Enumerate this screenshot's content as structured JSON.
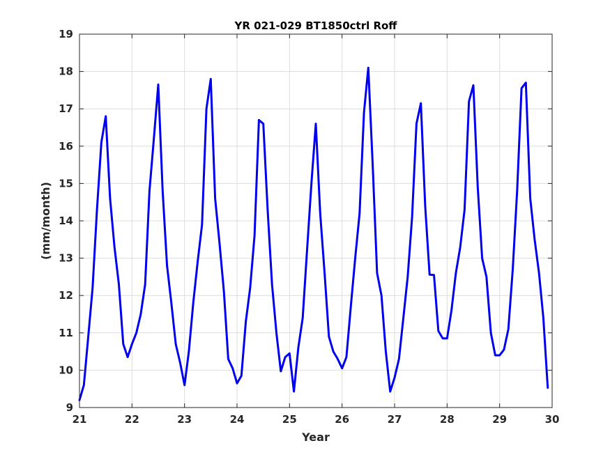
{
  "chart_data": {
    "type": "line",
    "title": "YR 021-029 BT1850ctrl Roff",
    "xlabel": "Year",
    "ylabel": "(mm/month)",
    "xlim": [
      21,
      30
    ],
    "ylim": [
      9,
      19
    ],
    "xticks": [
      21,
      22,
      23,
      24,
      25,
      26,
      27,
      28,
      29,
      30
    ],
    "yticks": [
      9,
      10,
      11,
      12,
      13,
      14,
      15,
      16,
      17,
      18,
      19
    ],
    "grid": true,
    "colors": {
      "line": "#0000ee",
      "grid": "#dcdcdc",
      "axis": "#262626"
    },
    "series": [
      {
        "x": [
          21.0,
          21.083,
          21.167,
          21.25,
          21.333,
          21.417,
          21.5,
          21.583,
          21.667,
          21.75,
          21.833,
          21.917,
          22.0,
          22.083,
          22.167,
          22.25,
          22.333,
          22.417,
          22.5,
          22.583,
          22.667,
          22.75,
          22.833,
          22.917,
          23.0,
          23.083,
          23.167,
          23.25,
          23.333,
          23.417,
          23.5,
          23.583,
          23.667,
          23.75,
          23.833,
          23.917,
          24.0,
          24.083,
          24.167,
          24.25,
          24.333,
          24.417,
          24.5,
          24.583,
          24.667,
          24.75,
          24.833,
          24.917,
          25.0,
          25.083,
          25.167,
          25.25,
          25.333,
          25.417,
          25.5,
          25.583,
          25.667,
          25.75,
          25.833,
          25.917,
          26.0,
          26.083,
          26.167,
          26.25,
          26.333,
          26.417,
          26.5,
          26.583,
          26.667,
          26.75,
          26.833,
          26.917,
          27.0,
          27.083,
          27.167,
          27.25,
          27.333,
          27.417,
          27.5,
          27.583,
          27.667,
          27.75,
          27.833,
          27.917,
          28.0,
          28.083,
          28.167,
          28.25,
          28.333,
          28.417,
          28.5,
          28.583,
          28.667,
          28.75,
          28.833,
          28.917,
          29.0,
          29.083,
          29.167,
          29.25,
          29.333,
          29.417,
          29.5,
          29.583,
          29.667,
          29.75,
          29.833,
          29.917
        ],
        "y": [
          9.2,
          9.6,
          10.9,
          12.2,
          14.3,
          16.1,
          16.8,
          14.6,
          13.3,
          12.3,
          10.7,
          10.35,
          10.7,
          11.0,
          11.5,
          12.3,
          14.8,
          16.2,
          17.65,
          14.8,
          12.8,
          11.8,
          10.7,
          10.2,
          9.6,
          10.5,
          11.8,
          12.9,
          13.9,
          17.0,
          17.8,
          14.6,
          13.4,
          12.1,
          10.3,
          10.05,
          9.65,
          9.85,
          11.3,
          12.2,
          13.6,
          16.7,
          16.6,
          14.3,
          12.3,
          11.0,
          9.97,
          10.35,
          10.45,
          9.43,
          10.6,
          11.4,
          13.2,
          15.0,
          16.6,
          14.2,
          12.6,
          10.9,
          10.5,
          10.3,
          10.05,
          10.35,
          11.7,
          13.0,
          14.2,
          16.9,
          18.1,
          15.5,
          12.6,
          12.0,
          10.5,
          9.43,
          9.8,
          10.3,
          11.4,
          12.5,
          14.1,
          16.6,
          17.15,
          14.4,
          12.56,
          12.55,
          11.05,
          10.85,
          10.85,
          11.6,
          12.6,
          13.3,
          14.3,
          17.2,
          17.63,
          14.9,
          13.0,
          12.5,
          11.0,
          10.4,
          10.4,
          10.55,
          11.1,
          12.7,
          14.8,
          17.55,
          17.7,
          14.6,
          13.5,
          12.6,
          11.4,
          9.53
        ]
      }
    ]
  }
}
